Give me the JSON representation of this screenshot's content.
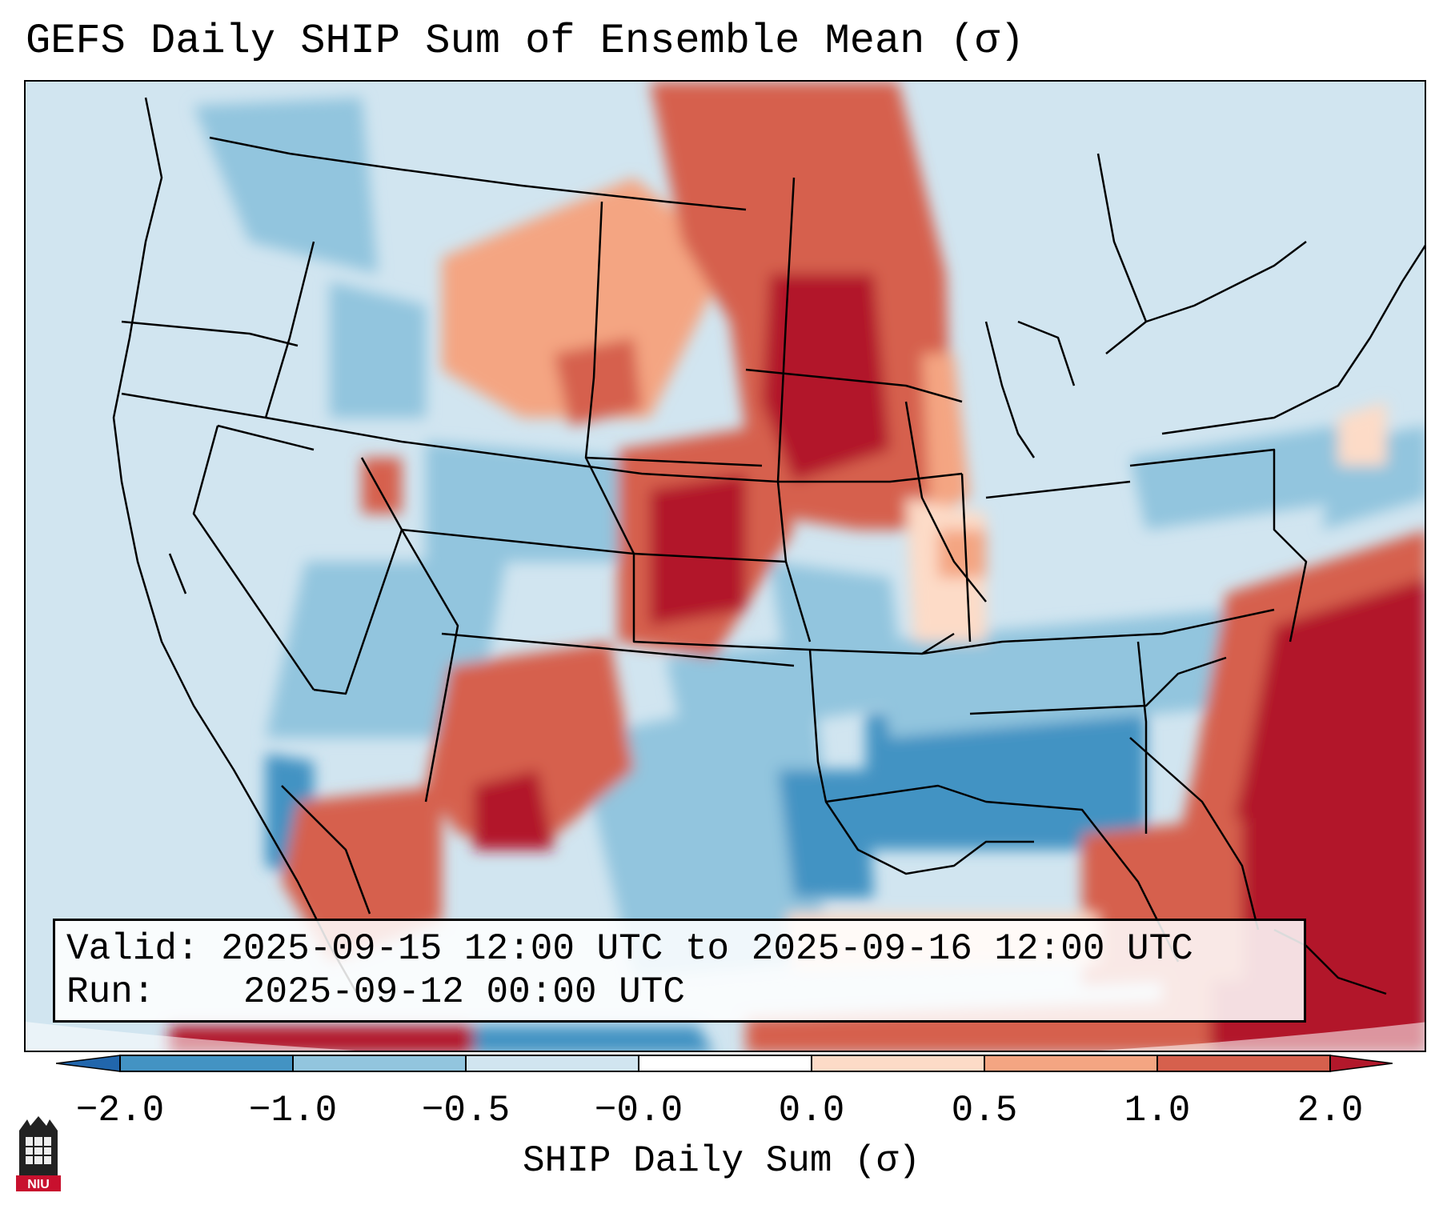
{
  "title": "GEFS Daily SHIP Sum of Ensemble Mean (σ)",
  "info": {
    "valid_label": "Valid:",
    "valid_value": "2025-09-15 12:00 UTC to 2025-09-16 12:00 UTC",
    "run_label": "Run:",
    "run_value": "2025-09-12 00:00 UTC"
  },
  "colorbar": {
    "label": "SHIP Daily Sum (σ)",
    "ticks": [
      "−2.0",
      "−1.0",
      "−0.5",
      "−0.0",
      "0.0",
      "0.5",
      "1.0",
      "2.0"
    ],
    "colors": [
      "#4393c3",
      "#92c5de",
      "#d1e5f0",
      "#ffffff",
      "#fddbc7",
      "#f4a582",
      "#d6604d",
      "#b2182b"
    ],
    "extend_low_color": "#2166ac",
    "extend_high_color": "#b2182b"
  },
  "logo": {
    "icon": "niu-logo-icon",
    "text": "NIU"
  }
}
